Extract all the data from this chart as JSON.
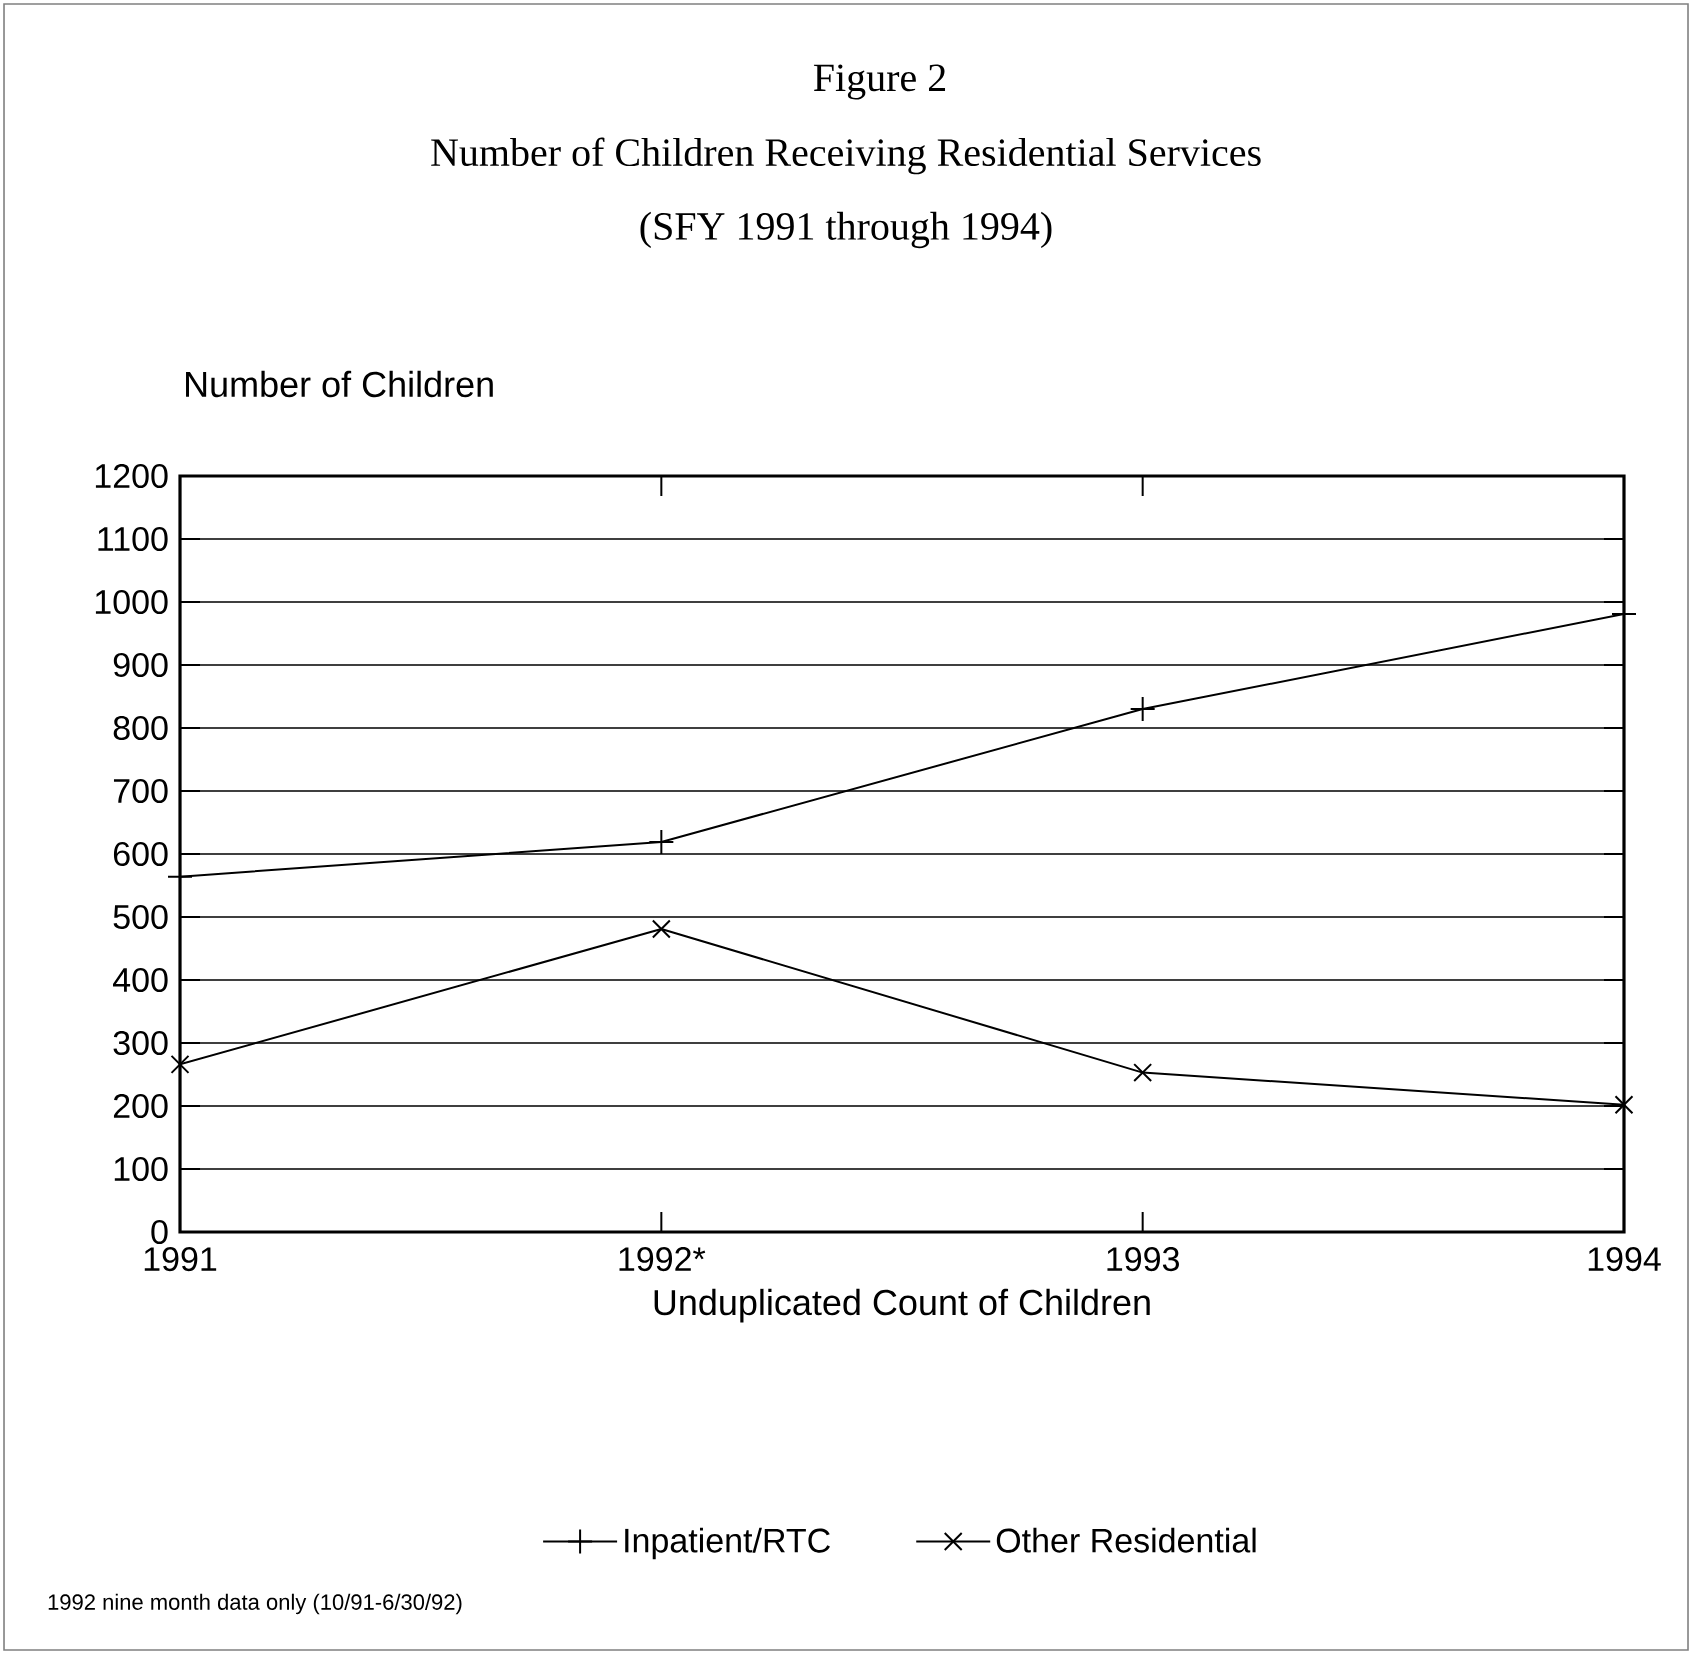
{
  "chart_data": {
    "type": "line",
    "title": "Figure 2",
    "subtitle": "Number of Children Receiving Residential Services",
    "annotations": [
      "(SFY 1991 through 1994)",
      "1992 nine month data only (10/91-6/30/92)"
    ],
    "ylabel": "Number of Children",
    "xlabel": "Unduplicated Count of Children",
    "categories": [
      "1991",
      "1992*",
      "1993",
      "1994"
    ],
    "series": [
      {
        "name": "Inpatient/RTC",
        "color": "#000000",
        "marker": "plus",
        "values": [
          564,
          619,
          830,
          981
        ]
      },
      {
        "name": "Other Residential",
        "color": "#000000",
        "marker": "cross",
        "values": [
          266,
          481,
          253,
          202
        ]
      }
    ],
    "ylim": [
      0,
      1200
    ],
    "yticks": [
      0,
      100,
      200,
      300,
      400,
      500,
      600,
      700,
      800,
      900,
      1000,
      1100,
      1200
    ],
    "grid": "y",
    "legend": "bottom",
    "line_style": "solid"
  }
}
